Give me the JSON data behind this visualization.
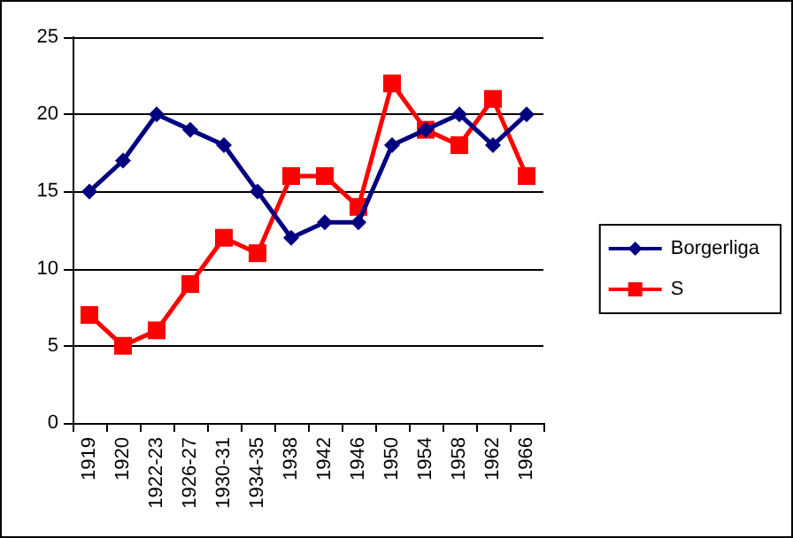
{
  "chart_data": {
    "type": "line",
    "categories": [
      "1919",
      "1920",
      "1922-23",
      "1926-27",
      "1930-31",
      "1934-35",
      "1938",
      "1942",
      "1946",
      "1950",
      "1954",
      "1958",
      "1962",
      "1966"
    ],
    "series": [
      {
        "name": "Borgerliga",
        "color": "#000080",
        "marker": "diamond",
        "values": [
          15,
          17,
          20,
          19,
          18,
          15,
          12,
          13,
          13,
          18,
          19,
          20,
          18,
          20
        ]
      },
      {
        "name": "S",
        "color": "#ff0000",
        "marker": "square",
        "values": [
          7,
          5,
          6,
          9,
          12,
          11,
          16,
          16,
          14,
          22,
          19,
          18,
          21,
          16
        ]
      }
    ],
    "ylim": [
      0,
      25
    ],
    "yticks": [
      0,
      5,
      10,
      15,
      20,
      25
    ],
    "grid": "y",
    "legend": "right",
    "line_style": "solid"
  }
}
